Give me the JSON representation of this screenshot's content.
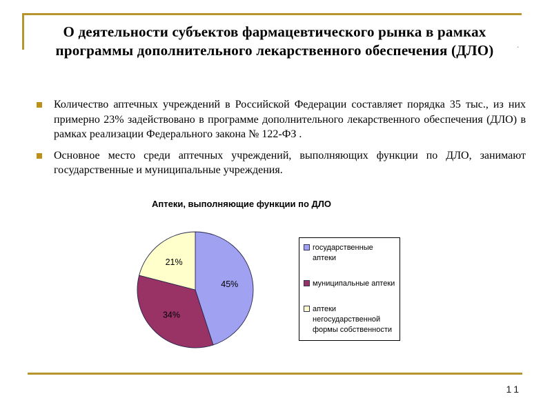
{
  "slide": {
    "title_line1": "О деятельности субъектов фармацевтического рынка в рамках",
    "title_line2": "программы дополнительного лекарственного обеспечения  (ДЛО)",
    "title_period": ".",
    "bullets": [
      "Количество аптечных учреждений в Российской Федерации составляет порядка 35 тыс., из них примерно 23% задействовано в программе дополнительного лекарственного обеспечения (ДЛО) в рамках реализации Федерального закона № 122-ФЗ .",
      "Основное место среди аптечных учреждений, выполняющих функции по ДЛО, занимают государственные и муниципальные учреждения."
    ],
    "page_number": "11"
  },
  "chart_data": {
    "type": "pie",
    "title": "Аптеки, выполняющие функции по ДЛО",
    "categories": [
      "государственные аптеки",
      "муниципальные аптеки",
      "аптеки негосударственной формы собственности"
    ],
    "values": [
      45,
      34,
      21
    ],
    "data_labels": [
      "45%",
      "34%",
      "21%"
    ],
    "colors": [
      "#A1A1F2",
      "#993366",
      "#FFFFCC"
    ],
    "start_angle": "12 o'clock",
    "direction": "clockwise",
    "legend_position": "right",
    "slice_border_color": "#26264d"
  },
  "colors": {
    "accent_gold": "#B6952C",
    "bullet_gold": "#BD9018"
  }
}
